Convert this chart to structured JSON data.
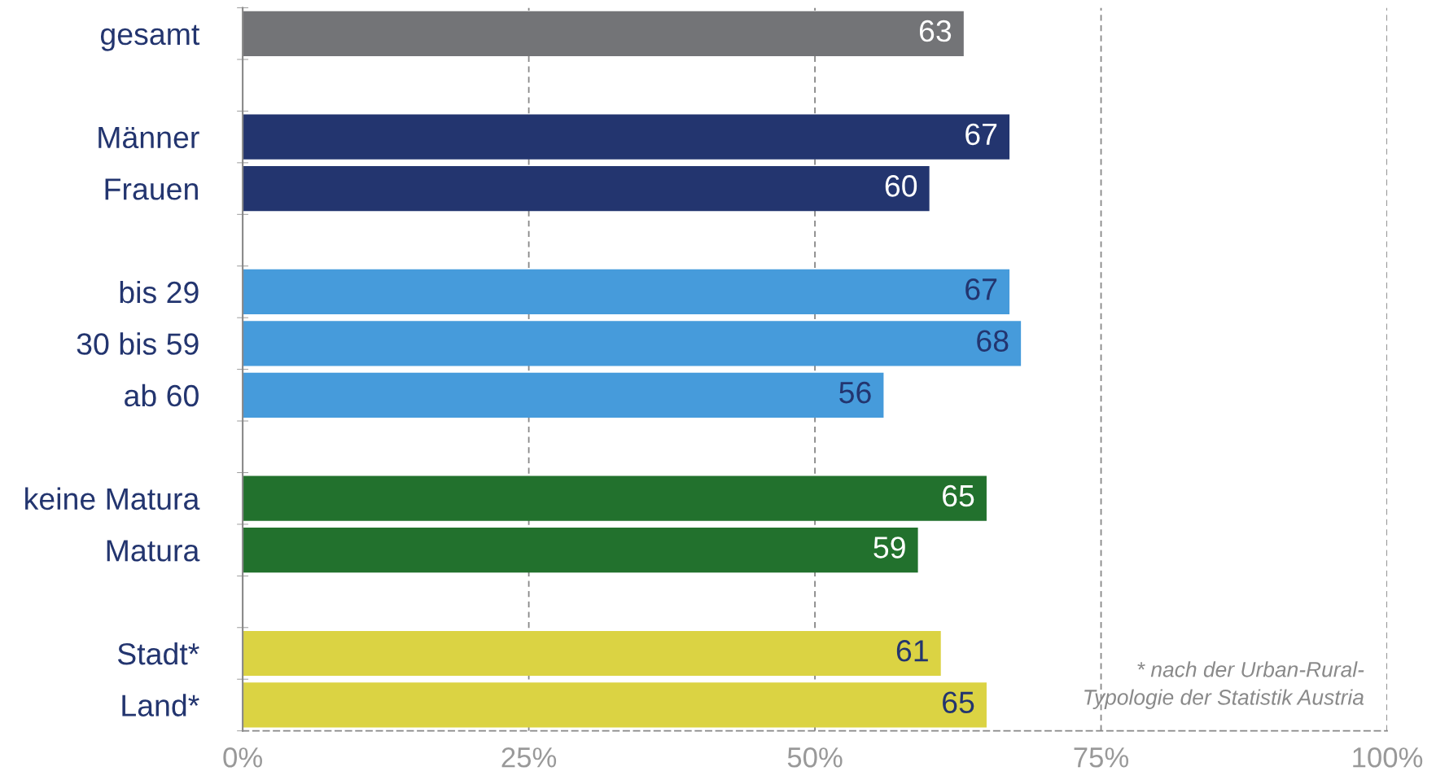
{
  "chart_data": {
    "type": "bar",
    "orientation": "horizontal",
    "categories": [
      "gesamt",
      null,
      "Männer",
      "Frauen",
      null,
      "bis 29",
      "30 bis 59",
      "ab 60",
      null,
      "keine Matura",
      "Matura",
      null,
      "Stadt*",
      "Land*"
    ],
    "values": [
      63,
      null,
      67,
      60,
      null,
      67,
      68,
      56,
      null,
      65,
      59,
      null,
      61,
      65
    ],
    "colors": [
      "#737477",
      null,
      "#23356f",
      "#23356f",
      null,
      "#469bdb",
      "#469bdb",
      "#469bdb",
      null,
      "#22712d",
      "#22712d",
      null,
      "#dbd343",
      "#dbd343"
    ],
    "xlim": [
      0,
      100
    ],
    "xticks": [
      {
        "value": 0,
        "label": "0%"
      },
      {
        "value": 25,
        "label": "25%"
      },
      {
        "value": 50,
        "label": "50%"
      },
      {
        "value": 75,
        "label": "75%"
      },
      {
        "value": 100,
        "label": "100%"
      }
    ],
    "grid": "x",
    "data_labels": true,
    "annotations": [
      "* nach der Urban-Rural-\nTypologie der Statistik Austria"
    ]
  }
}
